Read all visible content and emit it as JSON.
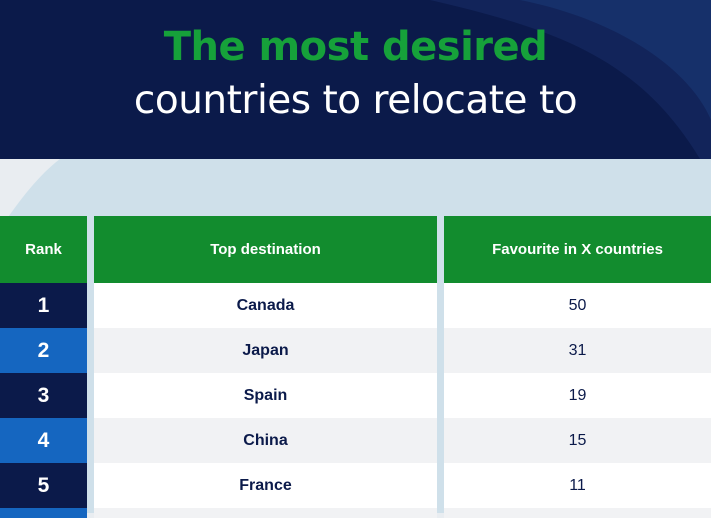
{
  "header": {
    "title_line1": "The most desired",
    "title_line2": "countries to relocate to"
  },
  "table": {
    "headers": {
      "rank": "Rank",
      "destination": "Top destination",
      "favourite": "Favourite in X countries"
    },
    "rows": [
      {
        "rank": "1",
        "destination": "Canada",
        "favourite": "50"
      },
      {
        "rank": "2",
        "destination": "Japan",
        "favourite": "31"
      },
      {
        "rank": "3",
        "destination": "Spain",
        "favourite": "19"
      },
      {
        "rank": "4",
        "destination": "China",
        "favourite": "15"
      },
      {
        "rank": "5",
        "destination": "France",
        "favourite": "11"
      }
    ]
  },
  "colors": {
    "navy": "#0b1a4a",
    "blue": "#1566c0",
    "green_header": "#128c2e",
    "green_title": "#16a13a"
  }
}
